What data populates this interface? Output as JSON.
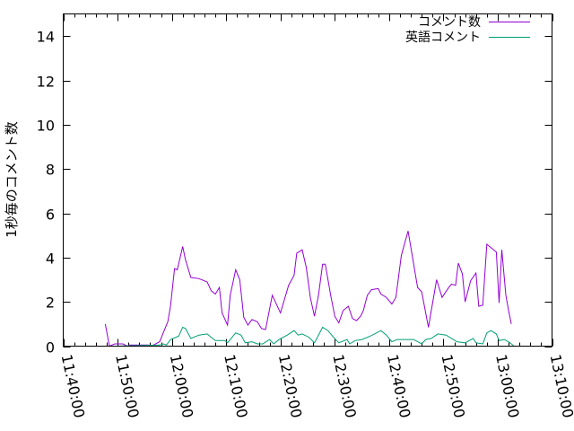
{
  "chart_data": {
    "type": "line",
    "title": "",
    "xlabel": "",
    "ylabel": "1秒毎のコメント数",
    "xlim": [
      "11:40:00",
      "13:10:00"
    ],
    "ylim": [
      0,
      15
    ],
    "x_ticks": [
      "11:40:00",
      "11:50:00",
      "12:00:00",
      "12:10:00",
      "12:20:00",
      "12:30:00",
      "12:40:00",
      "12:50:00",
      "13:00:00",
      "13:10:00"
    ],
    "y_ticks": [
      "0",
      "2",
      "4",
      "6",
      "8",
      "10",
      "12",
      "14"
    ],
    "grid": false,
    "legend_position": "top-right",
    "series": [
      {
        "name": "コメント数",
        "color": "#9400d3",
        "points": [
          [
            "11:47:45",
            1.0
          ],
          [
            "11:48:30",
            0
          ],
          [
            "11:49:30",
            0.1
          ],
          [
            "11:51:00",
            0.1
          ],
          [
            "11:51:45",
            0
          ],
          [
            "11:52:15",
            0.05
          ],
          [
            "11:55:45",
            0.05
          ],
          [
            "11:56:15",
            0
          ],
          [
            "11:57:45",
            0.2
          ],
          [
            "11:58:45",
            0.8
          ],
          [
            "11:59:15",
            1.1
          ],
          [
            "11:59:45",
            1.8
          ],
          [
            "12:00:30",
            3.5
          ],
          [
            "12:01:00",
            3.45
          ],
          [
            "12:02:00",
            4.5
          ],
          [
            "12:02:30",
            3.9
          ],
          [
            "12:03:30",
            3.1
          ],
          [
            "12:05:00",
            3.05
          ],
          [
            "12:06:30",
            2.9
          ],
          [
            "12:07:15",
            2.5
          ],
          [
            "12:08:00",
            2.35
          ],
          [
            "12:08:45",
            2.65
          ],
          [
            "12:09:15",
            1.5
          ],
          [
            "12:10:15",
            0.95
          ],
          [
            "12:10:45",
            2.3
          ],
          [
            "12:11:45",
            3.45
          ],
          [
            "12:12:30",
            3.0
          ],
          [
            "12:13:15",
            1.3
          ],
          [
            "12:14:00",
            0.95
          ],
          [
            "12:14:45",
            1.2
          ],
          [
            "12:15:45",
            1.1
          ],
          [
            "12:16:30",
            0.8
          ],
          [
            "12:17:15",
            0.75
          ],
          [
            "12:18:30",
            2.3
          ],
          [
            "12:20:00",
            1.5
          ],
          [
            "12:21:30",
            2.75
          ],
          [
            "12:22:30",
            3.2
          ],
          [
            "12:23:00",
            4.2
          ],
          [
            "12:24:00",
            4.35
          ],
          [
            "12:24:45",
            3.55
          ],
          [
            "12:25:30",
            2.2
          ],
          [
            "12:26:15",
            1.35
          ],
          [
            "12:27:00",
            2.3
          ],
          [
            "12:27:45",
            3.7
          ],
          [
            "12:28:15",
            3.7
          ],
          [
            "12:29:15",
            2.3
          ],
          [
            "12:30:00",
            1.35
          ],
          [
            "12:30:45",
            1.05
          ],
          [
            "12:31:30",
            1.6
          ],
          [
            "12:32:30",
            1.8
          ],
          [
            "12:33:15",
            1.25
          ],
          [
            "12:34:00",
            1.15
          ],
          [
            "12:34:45",
            1.35
          ],
          [
            "12:35:15",
            1.6
          ],
          [
            "12:36:00",
            2.3
          ],
          [
            "12:36:45",
            2.55
          ],
          [
            "12:38:00",
            2.6
          ],
          [
            "12:38:30",
            2.35
          ],
          [
            "12:39:30",
            2.2
          ],
          [
            "12:40:30",
            1.9
          ],
          [
            "12:41:15",
            2.2
          ],
          [
            "12:42:15",
            4.1
          ],
          [
            "12:43:30",
            5.2
          ],
          [
            "12:45:15",
            2.65
          ],
          [
            "12:46:00",
            2.45
          ],
          [
            "12:47:15",
            0.85
          ],
          [
            "12:48:45",
            3.0
          ],
          [
            "12:49:45",
            2.2
          ],
          [
            "12:51:00",
            2.65
          ],
          [
            "12:51:30",
            2.8
          ],
          [
            "12:52:15",
            2.75
          ],
          [
            "12:52:45",
            3.75
          ],
          [
            "12:53:30",
            3.25
          ],
          [
            "12:54:00",
            2.0
          ],
          [
            "12:55:00",
            2.95
          ],
          [
            "12:56:00",
            3.3
          ],
          [
            "12:56:30",
            1.8
          ],
          [
            "12:57:15",
            1.85
          ],
          [
            "12:58:00",
            4.6
          ],
          [
            "12:59:00",
            4.4
          ],
          [
            "12:59:45",
            4.25
          ],
          [
            "13:00:15",
            1.95
          ],
          [
            "13:00:45",
            4.35
          ],
          [
            "13:01:30",
            2.3
          ],
          [
            "13:02:00",
            1.6
          ],
          [
            "13:02:30",
            1.0
          ]
        ]
      },
      {
        "name": "英語コメント",
        "color": "#009e73",
        "points": [
          [
            "11:49:30",
            0
          ],
          [
            "11:57:45",
            0.05
          ],
          [
            "11:58:30",
            0.1
          ],
          [
            "11:59:00",
            0.05
          ],
          [
            "11:59:45",
            0.3
          ],
          [
            "12:01:15",
            0.45
          ],
          [
            "12:02:00",
            0.85
          ],
          [
            "12:02:30",
            0.8
          ],
          [
            "12:03:30",
            0.35
          ],
          [
            "12:05:00",
            0.5
          ],
          [
            "12:06:30",
            0.55
          ],
          [
            "12:07:30",
            0.35
          ],
          [
            "12:08:00",
            0.25
          ],
          [
            "12:09:45",
            0.25
          ],
          [
            "12:10:15",
            0.15
          ],
          [
            "12:11:45",
            0.6
          ],
          [
            "12:12:45",
            0.5
          ],
          [
            "12:13:30",
            0.15
          ],
          [
            "12:14:45",
            0.2
          ],
          [
            "12:15:45",
            0.1
          ],
          [
            "12:16:45",
            0.1
          ],
          [
            "12:18:00",
            0.3
          ],
          [
            "12:18:45",
            0.1
          ],
          [
            "12:19:45",
            0.3
          ],
          [
            "12:21:15",
            0.5
          ],
          [
            "12:22:30",
            0.7
          ],
          [
            "12:23:15",
            0.5
          ],
          [
            "12:24:00",
            0.55
          ],
          [
            "12:25:15",
            0.4
          ],
          [
            "12:26:15",
            0.15
          ],
          [
            "12:27:45",
            0.85
          ],
          [
            "12:28:45",
            0.7
          ],
          [
            "12:29:45",
            0.4
          ],
          [
            "12:30:45",
            0.15
          ],
          [
            "12:32:15",
            0.3
          ],
          [
            "12:32:45",
            0.1
          ],
          [
            "12:33:45",
            0.25
          ],
          [
            "12:35:00",
            0.3
          ],
          [
            "12:36:30",
            0.45
          ],
          [
            "12:38:30",
            0.7
          ],
          [
            "12:39:30",
            0.5
          ],
          [
            "12:40:30",
            0.2
          ],
          [
            "12:41:30",
            0.3
          ],
          [
            "12:42:45",
            0.3
          ],
          [
            "12:44:30",
            0.3
          ],
          [
            "12:46:00",
            0.1
          ],
          [
            "12:46:45",
            0.3
          ],
          [
            "12:47:45",
            0.35
          ],
          [
            "12:49:00",
            0.55
          ],
          [
            "12:50:30",
            0.5
          ],
          [
            "12:51:30",
            0.35
          ],
          [
            "12:52:30",
            0.2
          ],
          [
            "12:54:00",
            0.15
          ],
          [
            "12:55:30",
            0.35
          ],
          [
            "12:56:00",
            0.15
          ],
          [
            "12:57:15",
            0.1
          ],
          [
            "12:58:00",
            0.6
          ],
          [
            "12:58:45",
            0.7
          ],
          [
            "12:59:45",
            0.55
          ],
          [
            "13:00:15",
            0.25
          ],
          [
            "13:01:15",
            0.3
          ],
          [
            "13:02:15",
            0.15
          ],
          [
            "13:03:00",
            0
          ]
        ]
      }
    ]
  }
}
